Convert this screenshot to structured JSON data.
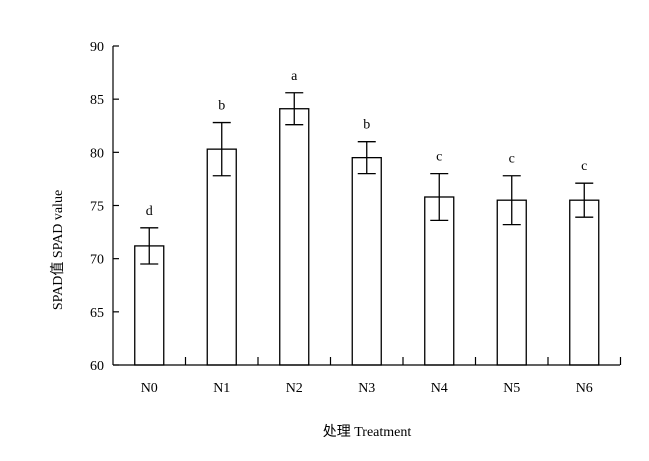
{
  "chart_data": {
    "type": "bar",
    "categories": [
      "N0",
      "N1",
      "N2",
      "N3",
      "N4",
      "N5",
      "N6"
    ],
    "values": [
      71.2,
      80.3,
      84.1,
      79.5,
      75.8,
      75.5,
      75.5
    ],
    "errors": [
      1.7,
      2.5,
      1.5,
      1.5,
      2.2,
      2.3,
      1.6
    ],
    "significance_letters": [
      "d",
      "b",
      "a",
      "b",
      "c",
      "c",
      "c"
    ],
    "xlabel": "处理 Treatment",
    "ylabel": "SPAD值 SPAD value",
    "ylim": [
      60,
      90
    ],
    "yticks": [
      60,
      65,
      70,
      75,
      80,
      85,
      90
    ],
    "grid": false,
    "bar_fill": "#ffffff",
    "bar_stroke": "#000000"
  }
}
